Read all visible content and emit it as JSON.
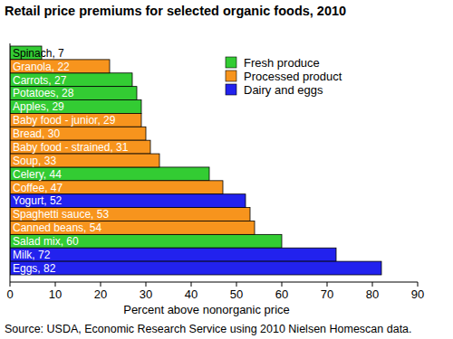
{
  "chart_data": {
    "type": "bar",
    "title": "Retail price premiums for selected organic foods, 2010",
    "x_label": "Percent above nonorganic price",
    "source": "Source: USDA, Economic Research Service using 2010 Nielsen Homescan data.",
    "orientation": "horizontal",
    "stacked": true,
    "data_labels": true,
    "grid": false,
    "legend": "top-right",
    "categories": [
      "Spinach",
      "Granola",
      "Carrots",
      "Potatoes",
      "Apples",
      "Baby food - junior",
      "Bread",
      "Baby food - strained",
      "Soup",
      "Celery",
      "Coffee",
      "Yogurt",
      "Spaghetti sauce",
      "Canned beans",
      "Salad mix",
      "Milk",
      "Eggs"
    ],
    "series": [
      {
        "name": "Fresh produce",
        "color": "#33cc33",
        "values": [
          7,
          null,
          27,
          28,
          29,
          null,
          null,
          null,
          null,
          44,
          null,
          null,
          null,
          null,
          60,
          null,
          null
        ]
      },
      {
        "name": "Processed product",
        "color": "#f7941d",
        "values": [
          null,
          22,
          null,
          null,
          null,
          29,
          30,
          31,
          33,
          null,
          47,
          null,
          53,
          54,
          null,
          null,
          null
        ]
      },
      {
        "name": "Dairy and eggs",
        "color": "#2222ee",
        "values": [
          null,
          null,
          null,
          null,
          null,
          null,
          null,
          null,
          null,
          null,
          null,
          52,
          null,
          null,
          null,
          72,
          82
        ]
      }
    ],
    "xlim": [
      0,
      90
    ],
    "xticks": [
      0,
      10,
      20,
      30,
      40,
      50,
      60,
      70,
      80,
      90
    ]
  }
}
